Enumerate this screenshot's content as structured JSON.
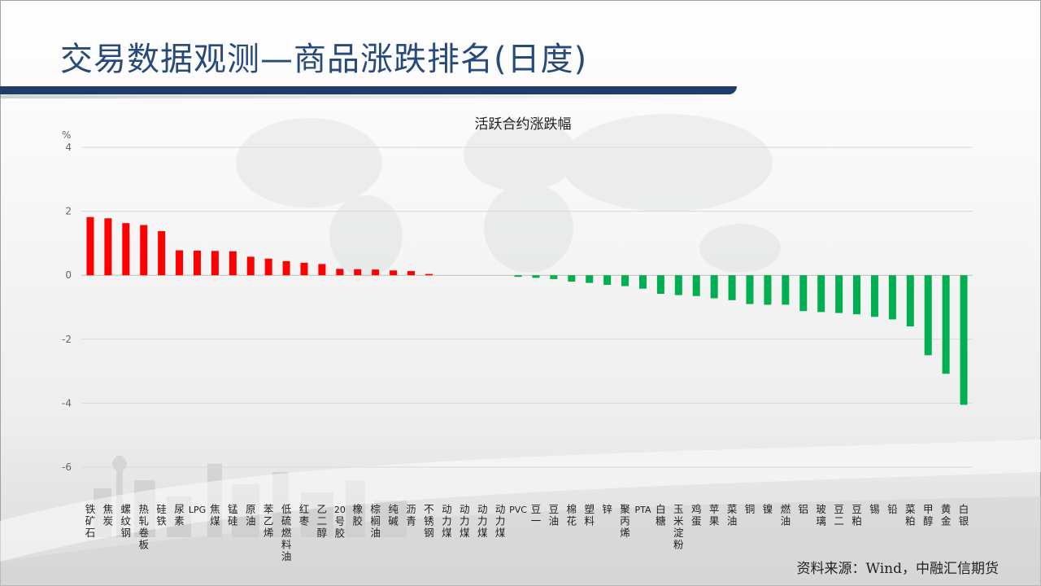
{
  "header": {
    "title": "交易数据观测—商品涨跌排名(日度)"
  },
  "footer": {
    "source": "资料来源：Wind，中融汇信期货"
  },
  "colors": {
    "up": "#ff0000",
    "down": "#00b050",
    "title": "#274a7a",
    "bar": "#1f3c6a"
  },
  "chart_data": {
    "type": "bar",
    "title": "活跃合约涨跌幅",
    "ylabel": "%",
    "ylim": [
      -6,
      4
    ],
    "yticks": [
      -6,
      -4,
      -2,
      0,
      2,
      4
    ],
    "grid": true,
    "legend": "none",
    "categories": [
      "铁矿石",
      "焦炭",
      "螺纹钢",
      "热轧卷板",
      "硅铁",
      "尿素",
      "LPG",
      "焦煤",
      "锰硅",
      "原油",
      "苯乙烯",
      "低硫燃料油",
      "红枣",
      "乙二醇",
      "20号胶",
      "橡胶",
      "棕榈油",
      "纯碱",
      "沥青",
      "不锈钢",
      "动力煤",
      "动力煤",
      "动力煤",
      "动力煤",
      "PVC",
      "豆一",
      "豆油",
      "棉花",
      "塑料",
      "锌",
      "聚丙烯",
      "PTA",
      "白糖",
      "玉米淀粉",
      "鸡蛋",
      "苹果",
      "菜油",
      "铜",
      "镍",
      "燃油",
      "铝",
      "玻璃",
      "豆二",
      "豆粕",
      "锡",
      "铅",
      "菜粕",
      "甲醇",
      "黄金",
      "白银"
    ],
    "values": [
      1.82,
      1.78,
      1.63,
      1.57,
      1.38,
      0.78,
      0.77,
      0.76,
      0.75,
      0.58,
      0.52,
      0.44,
      0.39,
      0.35,
      0.2,
      0.19,
      0.18,
      0.15,
      0.13,
      0.04,
      0,
      0,
      0,
      0,
      -0.05,
      -0.08,
      -0.12,
      -0.2,
      -0.24,
      -0.3,
      -0.34,
      -0.42,
      -0.58,
      -0.62,
      -0.65,
      -0.72,
      -0.78,
      -0.9,
      -0.92,
      -0.92,
      -1.12,
      -1.15,
      -1.18,
      -1.22,
      -1.3,
      -1.38,
      -1.6,
      -2.5,
      -3.08,
      -4.05
    ]
  }
}
